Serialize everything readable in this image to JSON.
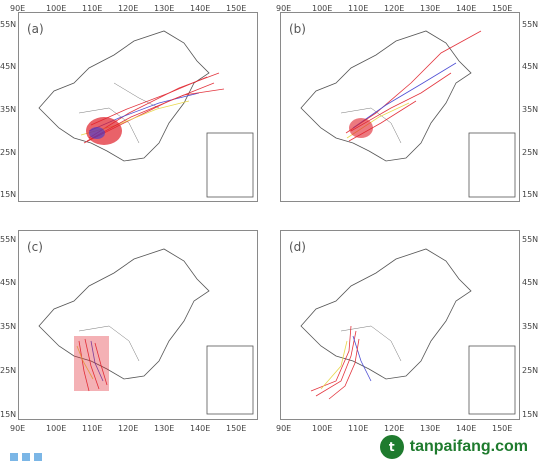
{
  "panels": [
    {
      "label": "(a)",
      "x_ticks": [
        "90E",
        "100E",
        "110E",
        "120E",
        "130E",
        "140E",
        "150E"
      ],
      "y_ticks": [
        "55N",
        "45N",
        "35N",
        "25N",
        "15N"
      ]
    },
    {
      "label": "(b)",
      "x_ticks": [
        "90E",
        "100E",
        "110E",
        "120E",
        "130E",
        "140E",
        "150E"
      ],
      "y_ticks": [
        "55N",
        "45N",
        "35N",
        "25N",
        "15N"
      ]
    },
    {
      "label": "(c)",
      "x_ticks": [
        "90E",
        "100E",
        "110E",
        "120E",
        "130E",
        "140E",
        "150E"
      ],
      "y_ticks": [
        "55N",
        "45N",
        "35N",
        "25N",
        "15N"
      ]
    },
    {
      "label": "(d)",
      "x_ticks": [
        "90E",
        "100E",
        "110E",
        "120E",
        "130E",
        "140E",
        "150E"
      ],
      "y_ticks": [
        "55N",
        "45N",
        "35N",
        "25N",
        "15N"
      ]
    }
  ],
  "watermark": {
    "logo_letter": "t",
    "text": "tanpaifang.com"
  },
  "colors": {
    "track_red": "#e0202a",
    "track_blue": "#3b3bd0",
    "track_yellow": "#e6d33a",
    "border": "#8a8a8a",
    "brand": "#1f7b2e"
  }
}
